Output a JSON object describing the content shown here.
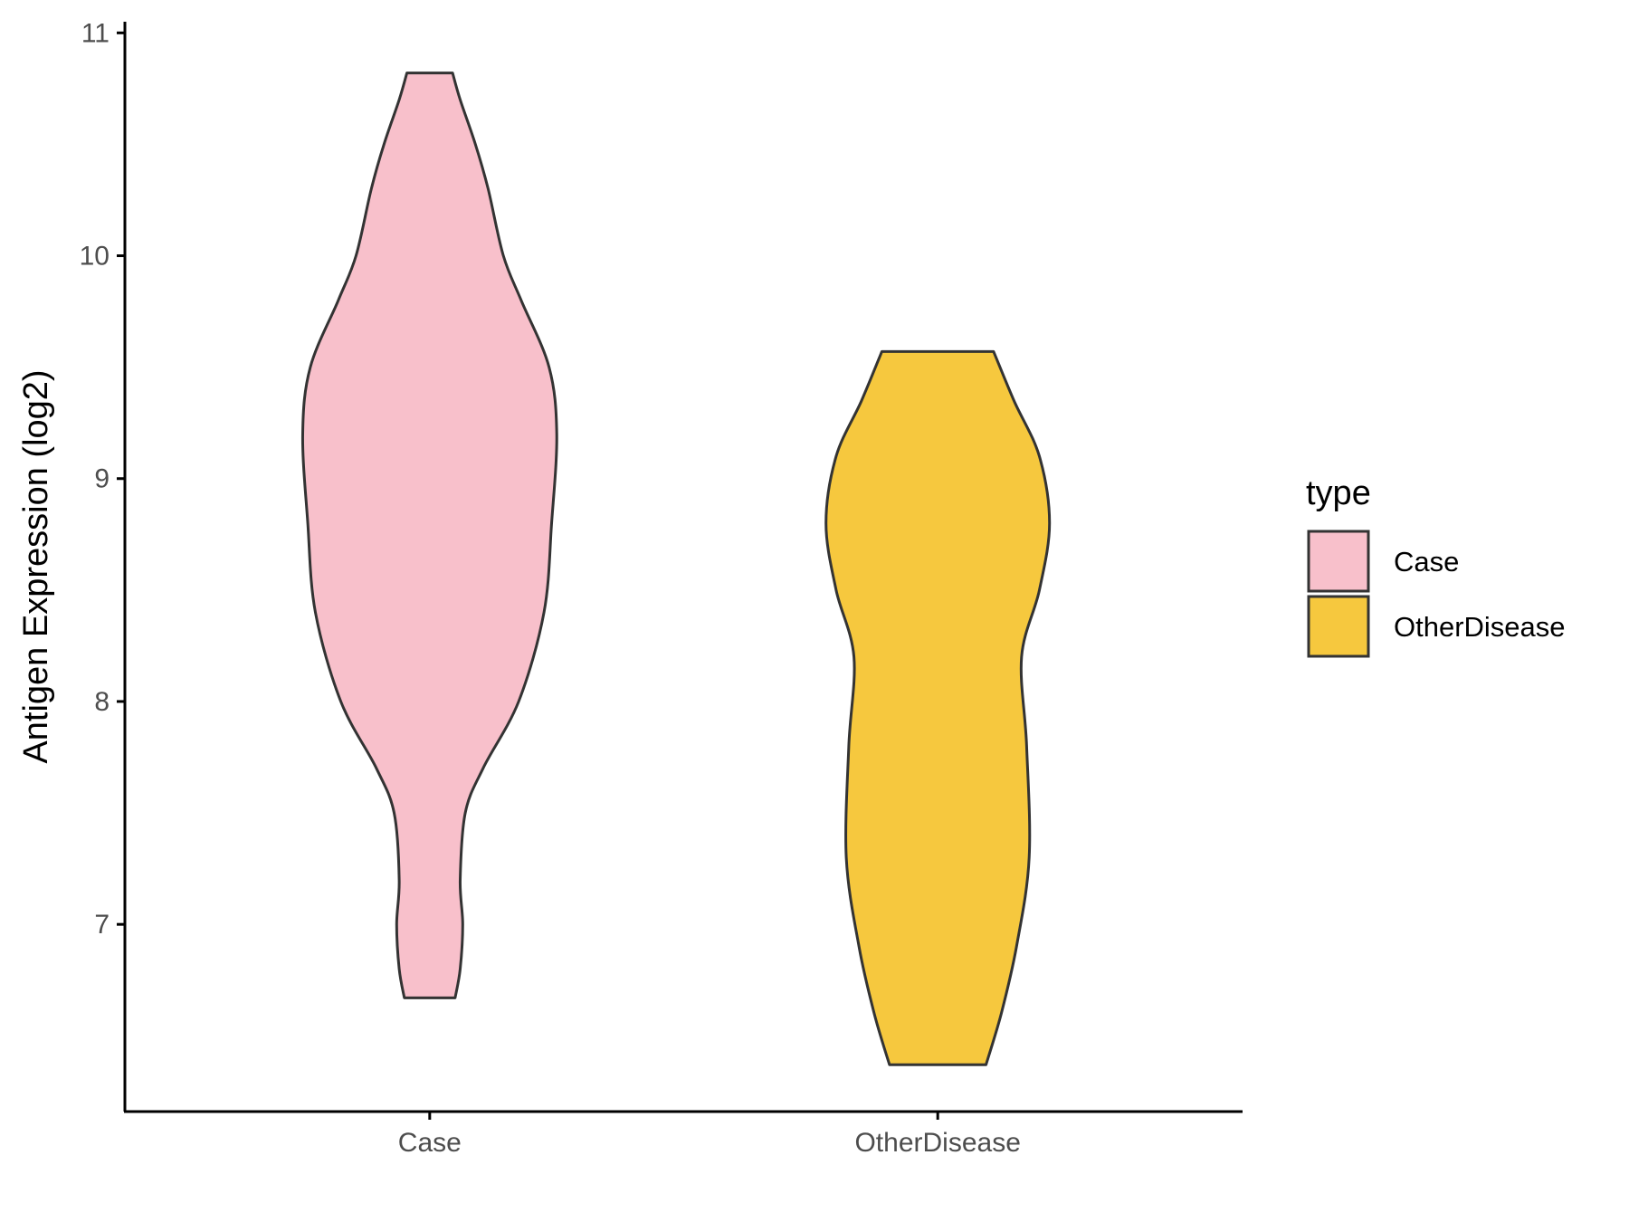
{
  "chart_data": {
    "type": "violin",
    "title": "",
    "xlabel": "",
    "ylabel": "Antigen Expression (log2)",
    "ylim": [
      6.16,
      11.05
    ],
    "y_ticks": [
      7,
      8,
      9,
      10,
      11
    ],
    "categories": [
      "Case",
      "OtherDisease"
    ],
    "grid": false,
    "legend": {
      "title": "type",
      "placement": "right",
      "entries": [
        "Case",
        "OtherDisease"
      ]
    },
    "series": [
      {
        "name": "Case",
        "color": "#F8C0CB",
        "min": 6.67,
        "max": 10.82,
        "half_width_profile": [
          [
            6.67,
            0.1
          ],
          [
            6.8,
            0.12
          ],
          [
            7.0,
            0.13
          ],
          [
            7.2,
            0.12
          ],
          [
            7.5,
            0.14
          ],
          [
            7.7,
            0.21
          ],
          [
            8.0,
            0.35
          ],
          [
            8.4,
            0.45
          ],
          [
            8.8,
            0.48
          ],
          [
            9.2,
            0.5
          ],
          [
            9.5,
            0.47
          ],
          [
            9.8,
            0.36
          ],
          [
            10.0,
            0.29
          ],
          [
            10.3,
            0.23
          ],
          [
            10.5,
            0.18
          ],
          [
            10.7,
            0.12
          ],
          [
            10.82,
            0.09
          ]
        ]
      },
      {
        "name": "OtherDisease",
        "color": "#F6C83E",
        "min": 6.37,
        "max": 9.57,
        "half_width_profile": [
          [
            6.37,
            0.19
          ],
          [
            6.6,
            0.25
          ],
          [
            6.9,
            0.31
          ],
          [
            7.3,
            0.36
          ],
          [
            7.8,
            0.35
          ],
          [
            8.2,
            0.33
          ],
          [
            8.5,
            0.4
          ],
          [
            8.8,
            0.44
          ],
          [
            9.1,
            0.4
          ],
          [
            9.35,
            0.3
          ],
          [
            9.57,
            0.22
          ]
        ]
      }
    ]
  }
}
